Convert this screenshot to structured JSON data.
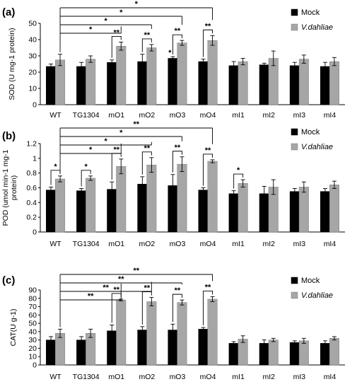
{
  "colors": {
    "mock": "#000000",
    "vd": "#a6a6a6"
  },
  "chart_data": [
    {
      "type": "bar",
      "panel": "(a)",
      "ylabel": "SOD (U mg-1 protein)",
      "ylim": [
        0,
        50
      ],
      "yticks": [
        0,
        10,
        20,
        30,
        40,
        50
      ],
      "categories": [
        "WT",
        "TG1304",
        "mO1",
        "mO2",
        "mO3",
        "mO4",
        "mI1",
        "mI2",
        "mI3",
        "mI4"
      ],
      "series": [
        {
          "name": "Mock",
          "values": [
            23.5,
            23.5,
            26,
            26.5,
            28.5,
            26.5,
            24,
            24.5,
            24,
            23.5
          ],
          "errors": [
            1.5,
            2.5,
            1.5,
            4.5,
            1,
            1.5,
            2.5,
            1,
            2,
            2.5
          ]
        },
        {
          "name": "V.dahliae",
          "values": [
            27.5,
            28,
            36,
            35,
            38,
            39.5,
            26.5,
            28.5,
            28,
            26.5
          ],
          "errors": [
            3.5,
            2,
            2.5,
            2,
            1.5,
            3,
            2,
            4.5,
            2.5,
            2.5
          ]
        }
      ],
      "pair_marks": [
        {
          "index": 2,
          "label": "**"
        },
        {
          "index": 3,
          "label": "**"
        },
        {
          "index": 4,
          "label": "**"
        },
        {
          "index": 5,
          "label": "**"
        }
      ],
      "mock_marks": [
        {
          "index": 4,
          "label": "*"
        }
      ],
      "comparisons": [
        {
          "from": 0,
          "to": 2,
          "label": "*"
        },
        {
          "from": 0,
          "to": 3,
          "label": "*"
        },
        {
          "from": 0,
          "to": 4,
          "label": "*"
        },
        {
          "from": 0,
          "to": 5,
          "label": "*"
        }
      ]
    },
    {
      "type": "bar",
      "panel": "(b)",
      "ylabel": "POD (umol min-1 mg-1 protein)",
      "ylim": [
        0,
        1.2
      ],
      "yticks": [
        0,
        0.2,
        0.4,
        0.6,
        0.8,
        1,
        1.2
      ],
      "categories": [
        "WT",
        "TG1304",
        "mO1",
        "mO2",
        "mO3",
        "mO4",
        "mI1",
        "mI2",
        "mI3",
        "mI4"
      ],
      "series": [
        {
          "name": "Mock",
          "values": [
            0.57,
            0.56,
            0.58,
            0.65,
            0.63,
            0.57,
            0.52,
            0.52,
            0.55,
            0.55
          ],
          "errors": [
            0.04,
            0.03,
            0.1,
            0.1,
            0.15,
            0.03,
            0.04,
            0.1,
            0.04,
            0.04
          ]
        },
        {
          "name": "V.dahliae",
          "values": [
            0.72,
            0.73,
            0.89,
            0.91,
            0.92,
            0.96,
            0.66,
            0.61,
            0.61,
            0.64
          ],
          "errors": [
            0.04,
            0.03,
            0.1,
            0.1,
            0.1,
            0.02,
            0.05,
            0.1,
            0.07,
            0.05
          ]
        }
      ],
      "pair_marks": [
        {
          "index": 0,
          "label": "*"
        },
        {
          "index": 1,
          "label": "*"
        },
        {
          "index": 2,
          "label": "**"
        },
        {
          "index": 3,
          "label": "**"
        },
        {
          "index": 4,
          "label": "**"
        },
        {
          "index": 5,
          "label": "**"
        },
        {
          "index": 6,
          "label": "*"
        }
      ],
      "mock_marks": [],
      "comparisons": [
        {
          "from": 0,
          "to": 2,
          "label": "*"
        },
        {
          "from": 0,
          "to": 3,
          "label": "*"
        },
        {
          "from": 0,
          "to": 4,
          "label": "*"
        },
        {
          "from": 0,
          "to": 5,
          "label": "**"
        }
      ]
    },
    {
      "type": "bar",
      "panel": "(c)",
      "ylabel": "CAT(U g-1)",
      "ylim": [
        0,
        90
      ],
      "yticks": [
        0,
        10,
        20,
        30,
        40,
        50,
        60,
        70,
        80,
        90
      ],
      "categories": [
        "WT",
        "TG1304",
        "mO1",
        "mO2",
        "mO3",
        "mO4",
        "mI1",
        "mI2",
        "mI3",
        "mI4"
      ],
      "series": [
        {
          "name": "Mock",
          "values": [
            30,
            30,
            41,
            42,
            42,
            43,
            26,
            26,
            27,
            26
          ],
          "errors": [
            4,
            4,
            7,
            4,
            7,
            2,
            2,
            4,
            2,
            3
          ]
        },
        {
          "name": "V.dahliae",
          "values": [
            38,
            38,
            78,
            76,
            75,
            79,
            31,
            30,
            29,
            32
          ],
          "errors": [
            5,
            5,
            1,
            5,
            3,
            3,
            4,
            2,
            3,
            2
          ]
        }
      ],
      "pair_marks": [
        {
          "index": 2,
          "label": "**"
        },
        {
          "index": 3,
          "label": "**"
        },
        {
          "index": 4,
          "label": "**"
        },
        {
          "index": 5,
          "label": "**"
        }
      ],
      "mock_marks": [],
      "comparisons": [
        {
          "from": 0,
          "to": 2,
          "label": "**"
        },
        {
          "from": 0,
          "to": 3,
          "label": "**"
        },
        {
          "from": 0,
          "to": 4,
          "label": "**"
        },
        {
          "from": 0,
          "to": 5,
          "label": "**"
        }
      ]
    }
  ]
}
